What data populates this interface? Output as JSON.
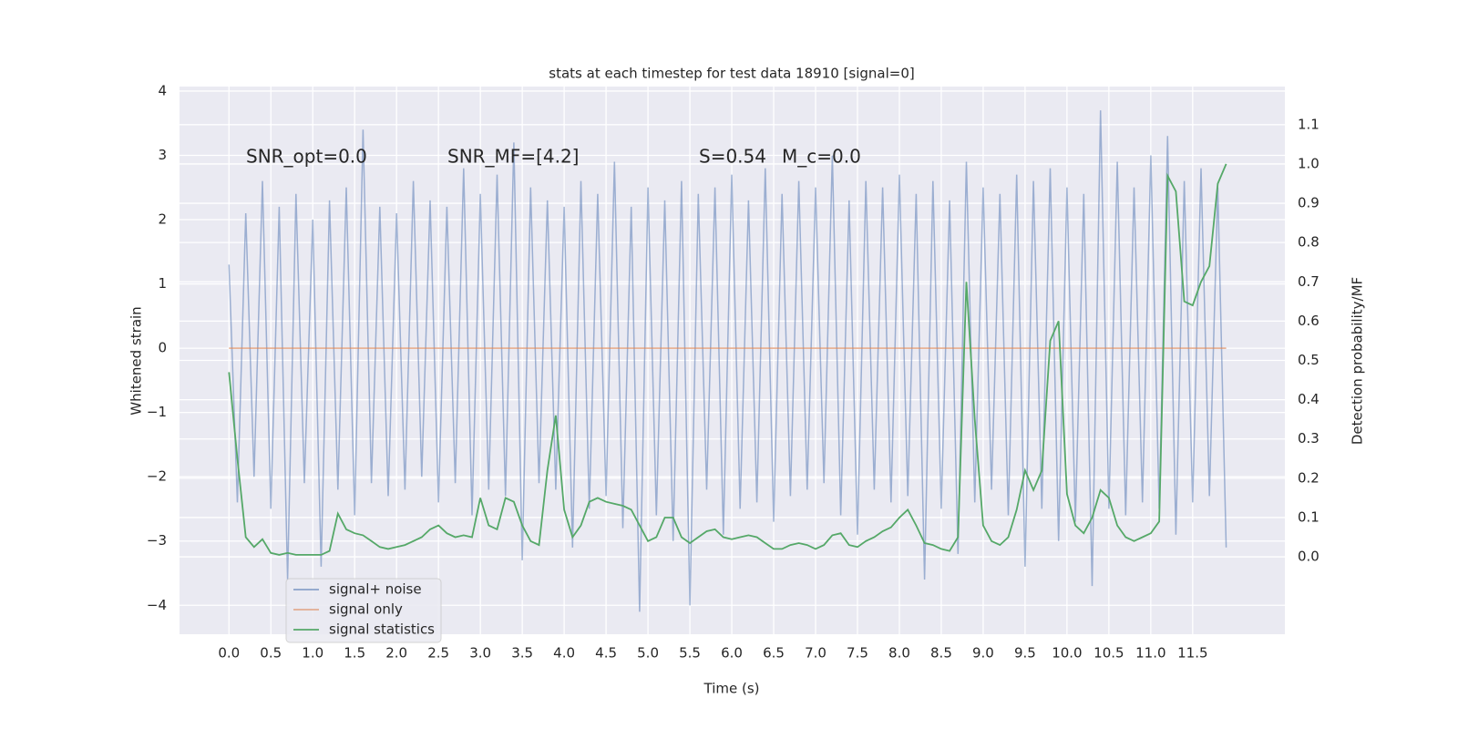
{
  "chart_data": {
    "type": "line",
    "title": "stats at each timestep for test data 18910 [signal=0]",
    "xlabel": "Time (s)",
    "ylabel": "Whitened strain",
    "y2label": "Detection probability/MF",
    "annotations": [
      "SNR_opt=0.0",
      "SNR_MF=[4.2]",
      "S=0.54",
      "M_c=0.0"
    ],
    "x": [
      0.0,
      0.1,
      0.2,
      0.3,
      0.4,
      0.5,
      0.6,
      0.7,
      0.8,
      0.9,
      1.0,
      1.1,
      1.2,
      1.3,
      1.4,
      1.5,
      1.6,
      1.7,
      1.8,
      1.9,
      2.0,
      2.1,
      2.2,
      2.3,
      2.4,
      2.5,
      2.6,
      2.7,
      2.8,
      2.9,
      3.0,
      3.1,
      3.2,
      3.3,
      3.4,
      3.5,
      3.6,
      3.7,
      3.8,
      3.9,
      4.0,
      4.1,
      4.2,
      4.3,
      4.4,
      4.5,
      4.6,
      4.7,
      4.8,
      4.9,
      5.0,
      5.1,
      5.2,
      5.3,
      5.4,
      5.5,
      5.6,
      5.7,
      5.8,
      5.9,
      6.0,
      6.1,
      6.2,
      6.3,
      6.4,
      6.5,
      6.6,
      6.7,
      6.8,
      6.9,
      7.0,
      7.1,
      7.2,
      7.3,
      7.4,
      7.5,
      7.6,
      7.7,
      7.8,
      7.9,
      8.0,
      8.1,
      8.2,
      8.3,
      8.4,
      8.5,
      8.6,
      8.7,
      8.8,
      8.9,
      9.0,
      9.1,
      9.2,
      9.3,
      9.4,
      9.5,
      9.6,
      9.7,
      9.8,
      9.9,
      10.0,
      10.1,
      10.2,
      10.3,
      10.4,
      10.5,
      10.6,
      10.7,
      10.8,
      10.9,
      11.0,
      11.1,
      11.2,
      11.3,
      11.4,
      11.5,
      11.6,
      11.7,
      11.8,
      11.9
    ],
    "series": [
      {
        "name": "signal+ noise",
        "color": "#4c72b0",
        "values": [
          1.3,
          -2.4,
          2.1,
          -2.0,
          2.6,
          -2.5,
          2.2,
          -3.6,
          2.4,
          -2.1,
          2.0,
          -3.4,
          2.3,
          -2.2,
          2.5,
          -2.6,
          3.4,
          -2.1,
          2.2,
          -2.3,
          2.1,
          -2.2,
          2.6,
          -2.0,
          2.3,
          -2.4,
          2.2,
          -2.1,
          2.8,
          -2.6,
          2.4,
          -2.2,
          2.7,
          -2.3,
          3.2,
          -3.3,
          2.5,
          -2.1,
          2.3,
          -2.2,
          2.2,
          -3.1,
          2.6,
          -2.5,
          2.4,
          -2.3,
          2.9,
          -2.8,
          2.2,
          -4.1,
          2.5,
          -2.6,
          2.3,
          -3.0,
          2.6,
          -4.0,
          2.4,
          -2.2,
          2.5,
          -2.9,
          2.7,
          -2.5,
          2.3,
          -2.4,
          2.8,
          -2.7,
          2.4,
          -2.3,
          2.6,
          -2.2,
          2.5,
          -2.1,
          3.0,
          -2.6,
          2.3,
          -2.9,
          2.6,
          -2.2,
          2.5,
          -2.4,
          2.7,
          -2.3,
          2.4,
          -3.6,
          2.6,
          -2.5,
          2.3,
          -3.2,
          2.9,
          -2.4,
          2.5,
          -2.2,
          2.4,
          -2.6,
          2.7,
          -3.4,
          2.6,
          -2.5,
          2.8,
          -3.0,
          2.5,
          -2.7,
          2.4,
          -3.7,
          3.7,
          -2.5,
          2.9,
          -2.6,
          2.5,
          -2.4,
          3.0,
          -2.5,
          3.3,
          -2.9,
          2.6,
          -2.4,
          2.8,
          -2.3,
          2.5,
          -3.1
        ]
      },
      {
        "name": "signal only",
        "color": "#dd8452",
        "values": [
          0,
          0,
          0,
          0,
          0,
          0,
          0,
          0,
          0,
          0,
          0,
          0,
          0,
          0,
          0,
          0,
          0,
          0,
          0,
          0,
          0,
          0,
          0,
          0,
          0,
          0,
          0,
          0,
          0,
          0,
          0,
          0,
          0,
          0,
          0,
          0,
          0,
          0,
          0,
          0,
          0,
          0,
          0,
          0,
          0,
          0,
          0,
          0,
          0,
          0,
          0,
          0,
          0,
          0,
          0,
          0,
          0,
          0,
          0,
          0,
          0,
          0,
          0,
          0,
          0,
          0,
          0,
          0,
          0,
          0,
          0,
          0,
          0,
          0,
          0,
          0,
          0,
          0,
          0,
          0,
          0,
          0,
          0,
          0,
          0,
          0,
          0,
          0,
          0,
          0,
          0,
          0,
          0,
          0,
          0,
          0,
          0,
          0,
          0,
          0,
          0,
          0,
          0,
          0,
          0,
          0,
          0,
          0,
          0,
          0,
          0,
          0,
          0,
          0,
          0,
          0,
          0,
          0,
          0,
          0
        ]
      },
      {
        "name": "signal statistics",
        "color": "#55a868",
        "axis": "y2",
        "values": [
          0.47,
          0.25,
          0.05,
          0.025,
          0.045,
          0.01,
          0.005,
          0.01,
          0.005,
          0.005,
          0.005,
          0.005,
          0.015,
          0.11,
          0.07,
          0.06,
          0.055,
          0.04,
          0.025,
          0.02,
          0.025,
          0.03,
          0.04,
          0.05,
          0.07,
          0.08,
          0.06,
          0.05,
          0.055,
          0.05,
          0.15,
          0.08,
          0.07,
          0.15,
          0.14,
          0.08,
          0.04,
          0.03,
          0.22,
          0.36,
          0.12,
          0.05,
          0.08,
          0.14,
          0.15,
          0.14,
          0.135,
          0.13,
          0.12,
          0.08,
          0.04,
          0.05,
          0.1,
          0.1,
          0.05,
          0.035,
          0.05,
          0.065,
          0.07,
          0.05,
          0.045,
          0.05,
          0.055,
          0.05,
          0.035,
          0.02,
          0.02,
          0.03,
          0.035,
          0.03,
          0.02,
          0.03,
          0.055,
          0.06,
          0.03,
          0.025,
          0.04,
          0.05,
          0.065,
          0.075,
          0.1,
          0.12,
          0.08,
          0.035,
          0.03,
          0.02,
          0.015,
          0.05,
          0.7,
          0.35,
          0.08,
          0.04,
          0.03,
          0.05,
          0.12,
          0.22,
          0.17,
          0.22,
          0.55,
          0.6,
          0.16,
          0.08,
          0.06,
          0.1,
          0.17,
          0.15,
          0.08,
          0.05,
          0.04,
          0.05,
          0.06,
          0.09,
          0.97,
          0.93,
          0.65,
          0.64,
          0.7,
          0.74,
          0.95,
          1.0
        ]
      }
    ],
    "xlim": [
      -0.59,
      12.6
    ],
    "ylim": [
      -4.45,
      4.07
    ],
    "y2lim": [
      -0.197,
      1.197
    ],
    "xticks": [
      {
        "value": 0,
        "label": "0.0"
      },
      0.5,
      {
        "value": 1,
        "label": "1.0"
      },
      1.5,
      {
        "value": 2,
        "label": "2.0"
      },
      2.5,
      {
        "value": 3,
        "label": "3.0"
      },
      3.5,
      {
        "value": 4,
        "label": "4.0"
      },
      4.5,
      {
        "value": 5,
        "label": "5.0"
      },
      5.5,
      {
        "value": 6,
        "label": "6.0"
      },
      6.5,
      {
        "value": 7,
        "label": "7.0"
      },
      7.5,
      {
        "value": 8,
        "label": "8.0"
      },
      8.5,
      {
        "value": 9,
        "label": "9.0"
      },
      9.5,
      {
        "value": 10,
        "label": "10.0"
      },
      10.5,
      {
        "value": 11,
        "label": "11.0"
      },
      11.5
    ],
    "yticks": [
      4,
      3,
      2,
      1,
      0,
      {
        "value": -1,
        "label": "−1"
      },
      {
        "value": -2,
        "label": "−2"
      },
      {
        "value": -3,
        "label": "−3"
      },
      {
        "value": -4,
        "label": "−4"
      }
    ],
    "y2ticks": [
      {
        "value": 0,
        "label": "0.0"
      },
      0.1,
      0.2,
      0.3,
      0.4,
      0.5,
      0.6,
      0.7,
      0.8,
      0.9,
      {
        "value": 1,
        "label": "1.0"
      },
      1.1
    ],
    "grid": true,
    "legend": "lower left"
  }
}
